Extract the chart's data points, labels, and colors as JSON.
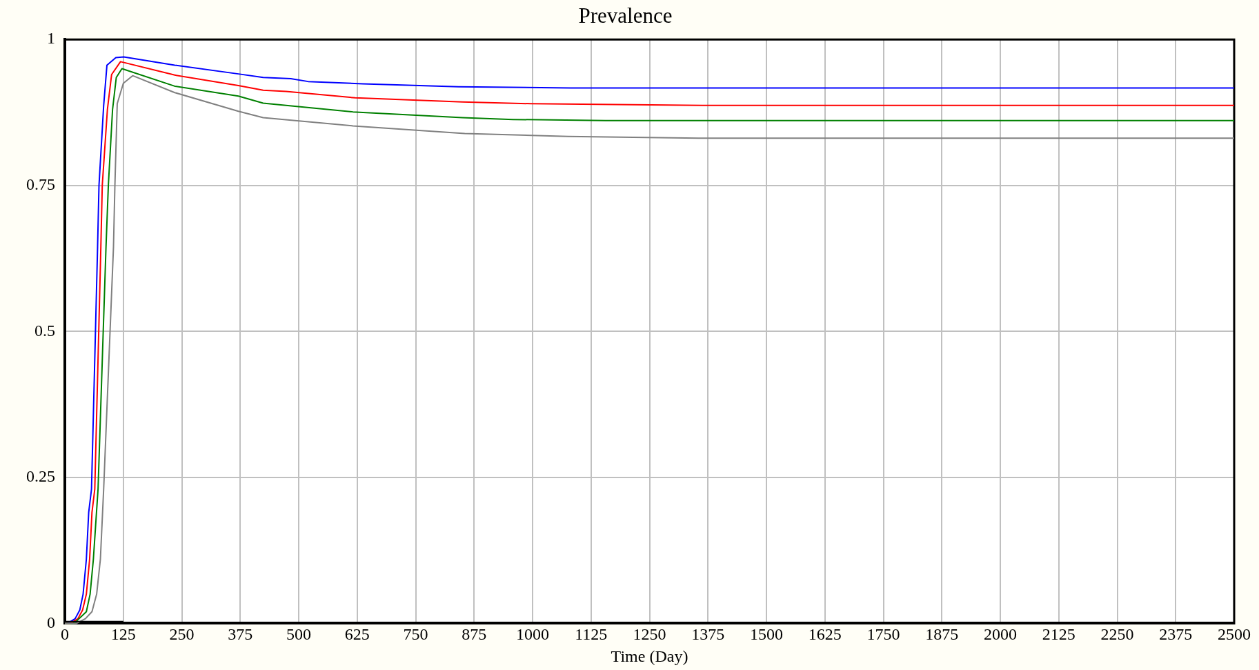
{
  "chart_data": {
    "type": "line",
    "title": "Prevalence",
    "xlabel": "Time (Day)",
    "xlim": [
      0,
      2500
    ],
    "xticks": [
      0,
      125,
      250,
      375,
      500,
      625,
      750,
      875,
      1000,
      1125,
      1250,
      1375,
      1500,
      1625,
      1750,
      1875,
      2000,
      2125,
      2250,
      2375,
      2500
    ],
    "ylim": [
      0,
      1
    ],
    "yticks": [
      0,
      0.25,
      0.5,
      0.75,
      1
    ],
    "grid": true,
    "legend": false,
    "marker": "none",
    "line_style": "solid",
    "series": [
      {
        "color": "#0000ff",
        "x": [
          0,
          6,
          22,
          32,
          39,
          46,
          51,
          57,
          70,
          73,
          83,
          90,
          109,
          126,
          235,
          371,
          424,
          483,
          520,
          637,
          842,
          1081,
          2500
        ],
        "values": [
          0,
          0,
          0.008,
          0.023,
          0.05,
          0.11,
          0.19,
          0.23,
          0.645,
          0.75,
          0.887,
          0.956,
          0.969,
          0.97,
          0.956,
          0.941,
          0.935,
          0.933,
          0.928,
          0.924,
          0.919,
          0.917,
          0.917
        ]
      },
      {
        "color": "#ff0000",
        "x": [
          0,
          12,
          28,
          38,
          46,
          53,
          58,
          64,
          77,
          80,
          91,
          100,
          119,
          235,
          371,
          424,
          473,
          621,
          850,
          996,
          1384,
          2500
        ],
        "values": [
          0,
          0,
          0.008,
          0.023,
          0.05,
          0.11,
          0.19,
          0.23,
          0.645,
          0.75,
          0.88,
          0.94,
          0.962,
          0.939,
          0.921,
          0.913,
          0.911,
          0.9,
          0.893,
          0.89,
          0.887,
          0.887
        ]
      },
      {
        "color": "#008000",
        "x": [
          0,
          20,
          46,
          54,
          61,
          71,
          88,
          93,
          102,
          110,
          122,
          235,
          371,
          424,
          473,
          616,
          850,
          958,
          1156,
          2500
        ],
        "values": [
          0,
          0,
          0.02,
          0.05,
          0.11,
          0.23,
          0.645,
          0.75,
          0.88,
          0.935,
          0.95,
          0.92,
          0.903,
          0.891,
          0.887,
          0.876,
          0.866,
          0.863,
          0.861,
          0.861
        ]
      },
      {
        "color": "#808080",
        "x": [
          0,
          25,
          44,
          58,
          68,
          76,
          83,
          104,
          107,
          112,
          125,
          145,
          235,
          371,
          424,
          616,
          855,
          1076,
          1355,
          2500
        ],
        "values": [
          0,
          0,
          0.008,
          0.02,
          0.05,
          0.11,
          0.23,
          0.645,
          0.75,
          0.89,
          0.925,
          0.938,
          0.909,
          0.877,
          0.866,
          0.852,
          0.839,
          0.834,
          0.831,
          0.831
        ]
      },
      {
        "color": "#000000",
        "x": [
          0,
          125
        ],
        "values": [
          0.003,
          0.003
        ]
      }
    ]
  }
}
